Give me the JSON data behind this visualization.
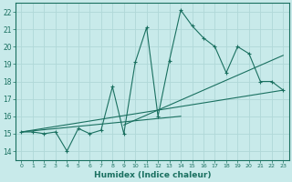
{
  "xlabel": "Humidex (Indice chaleur)",
  "bg_color": "#c8eaea",
  "grid_color": "#b0d8d8",
  "line_color": "#1a7060",
  "xlim": [
    -0.5,
    23.5
  ],
  "ylim": [
    13.5,
    22.5
  ],
  "xticks": [
    0,
    1,
    2,
    3,
    4,
    5,
    6,
    7,
    8,
    9,
    10,
    11,
    12,
    13,
    14,
    15,
    16,
    17,
    18,
    19,
    20,
    21,
    22,
    23
  ],
  "yticks": [
    14,
    15,
    16,
    17,
    18,
    19,
    20,
    21,
    22
  ],
  "data_line": {
    "x": [
      0,
      1,
      2,
      3,
      4,
      5,
      6,
      7,
      8,
      9,
      10,
      11,
      12,
      13,
      14,
      15,
      16,
      17,
      18,
      19,
      20,
      21,
      22,
      23
    ],
    "y": [
      15.1,
      15.1,
      15.0,
      15.1,
      14.0,
      15.3,
      15.0,
      15.2,
      17.7,
      15.0,
      19.1,
      21.1,
      16.0,
      19.2,
      22.1,
      21.2,
      20.5,
      20.0,
      18.5,
      20.0,
      19.6,
      18.0,
      18.0,
      17.5
    ]
  },
  "regression_lines": [
    {
      "x": [
        0,
        23
      ],
      "y": [
        15.1,
        17.5
      ]
    },
    {
      "x": [
        0,
        14
      ],
      "y": [
        15.1,
        16.0
      ]
    },
    {
      "x": [
        9,
        23
      ],
      "y": [
        15.5,
        19.5
      ]
    }
  ]
}
